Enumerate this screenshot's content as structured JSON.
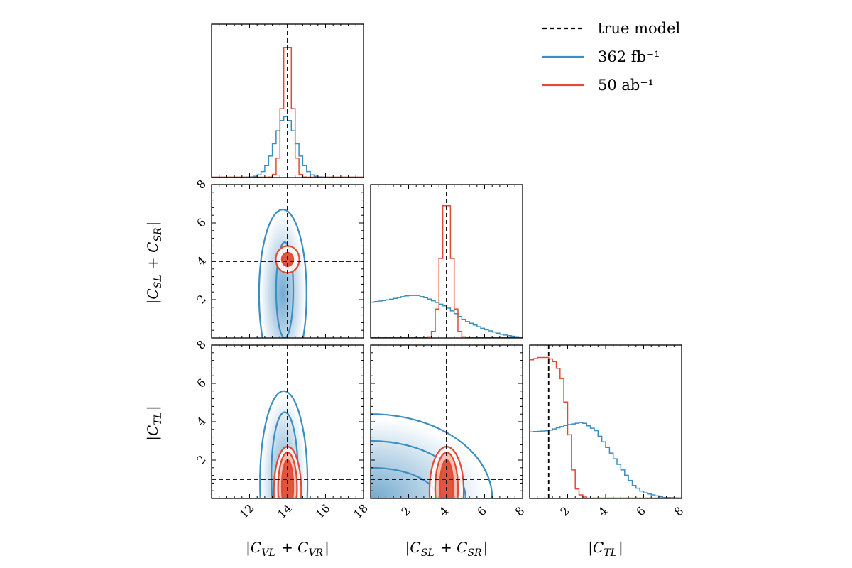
{
  "colors": {
    "blue": "#3a8ec2",
    "red": "#e24a33",
    "truth": "#000000"
  },
  "legend": {
    "entries": [
      {
        "label": "true model",
        "style": "dashed",
        "color": "#000000"
      },
      {
        "label": "362 fb⁻¹",
        "style": "solid",
        "color": "#3a8ec2"
      },
      {
        "label": "50 ab⁻¹",
        "style": "solid",
        "color": "#e24a33"
      }
    ]
  },
  "axes": {
    "x_labels": [
      "|C_VL + C_VR|",
      "|C_SL + C_SR|",
      "|C_TL|"
    ],
    "y_labels": [
      "|C_SL + C_SR|",
      "|C_TL|"
    ]
  },
  "chart_data": {
    "type": "corner",
    "parameters": [
      {
        "name": "|C_VL + C_VR|",
        "range": [
          10,
          18
        ],
        "ticks": [
          12,
          14,
          16,
          18
        ],
        "truth": 14
      },
      {
        "name": "|C_SL + C_SR|",
        "range": [
          0,
          8
        ],
        "ticks": [
          2,
          4,
          6,
          8
        ],
        "truth": 4
      },
      {
        "name": "|C_TL|",
        "range": [
          0,
          8
        ],
        "ticks": [
          2,
          4,
          6,
          8
        ],
        "truth": 1
      }
    ],
    "series": [
      {
        "name": "362 fb⁻¹",
        "color": "#3a8ec2",
        "marginals": [
          {
            "kind": "gaussian",
            "center": 13.9,
            "sigma": 0.55,
            "peak": 0.43
          },
          {
            "kind": "points",
            "x": [
              0,
              1,
              2,
              2.5,
              3,
              4,
              5,
              6,
              7,
              8
            ],
            "y": [
              0.25,
              0.27,
              0.3,
              0.3,
              0.28,
              0.22,
              0.12,
              0.06,
              0.02,
              0.0
            ]
          },
          {
            "kind": "points",
            "x": [
              0,
              1,
              2,
              2.8,
              3.5,
              4,
              5,
              5.5,
              6,
              7,
              8
            ],
            "y": [
              0.47,
              0.48,
              0.52,
              0.54,
              0.48,
              0.38,
              0.18,
              0.09,
              0.04,
              0.005,
              0.0
            ]
          }
        ],
        "contours": {
          "0-1": [
            {
              "cx": 13.85,
              "cy": 2.5,
              "rx": 0.45,
              "ry": 2.5
            },
            {
              "cx": 13.75,
              "cy": 2.3,
              "rx": 1.25,
              "ry": 4.4
            }
          ],
          "0-2": [
            {
              "cx": 13.85,
              "cy": 1.2,
              "rx": 0.7,
              "ry": 3.3
            },
            {
              "cx": 13.8,
              "cy": 0.8,
              "rx": 1.25,
              "ry": 4.8
            }
          ],
          "1-2": [
            {
              "cx": 0.0,
              "cy": 0.0,
              "rx": 3.5,
              "ry": 1.6
            },
            {
              "cx": 0.0,
              "cy": 0.0,
              "rx": 5.0,
              "ry": 3.0
            },
            {
              "cx": 0.0,
              "cy": 0.0,
              "rx": 6.4,
              "ry": 4.4
            }
          ]
        }
      },
      {
        "name": "50 ab⁻¹",
        "color": "#e24a33",
        "marginals": [
          {
            "kind": "gaussian",
            "center": 14.0,
            "sigma": 0.25,
            "peak": 1.0
          },
          {
            "kind": "gaussian",
            "center": 4.0,
            "sigma": 0.28,
            "peak": 1.0
          },
          {
            "kind": "points",
            "x": [
              0,
              0.5,
              1,
              1.4,
              1.7,
              2.0,
              2.2,
              2.4,
              2.6,
              3,
              8
            ],
            "y": [
              0.98,
              1.0,
              1.0,
              0.96,
              0.85,
              0.6,
              0.3,
              0.1,
              0.03,
              0.0,
              0.0
            ]
          }
        ],
        "contours": {
          "0-1": [
            {
              "cx": 14.0,
              "cy": 4.1,
              "rx": 0.3,
              "ry": 0.35
            },
            {
              "cx": 14.0,
              "cy": 4.1,
              "rx": 0.62,
              "ry": 0.7
            }
          ],
          "0-2": [
            {
              "cx": 14.0,
              "cy": 0.6,
              "rx": 0.3,
              "ry": 1.4
            },
            {
              "cx": 14.0,
              "cy": 0.5,
              "rx": 0.5,
              "ry": 1.9
            },
            {
              "cx": 14.0,
              "cy": 0.4,
              "rx": 0.72,
              "ry": 2.3
            }
          ],
          "1-2": [
            {
              "cx": 4.0,
              "cy": 0.6,
              "rx": 0.35,
              "ry": 1.4
            },
            {
              "cx": 4.0,
              "cy": 0.5,
              "rx": 0.6,
              "ry": 1.9
            },
            {
              "cx": 4.0,
              "cy": 0.4,
              "rx": 0.9,
              "ry": 2.3
            }
          ]
        }
      }
    ]
  }
}
